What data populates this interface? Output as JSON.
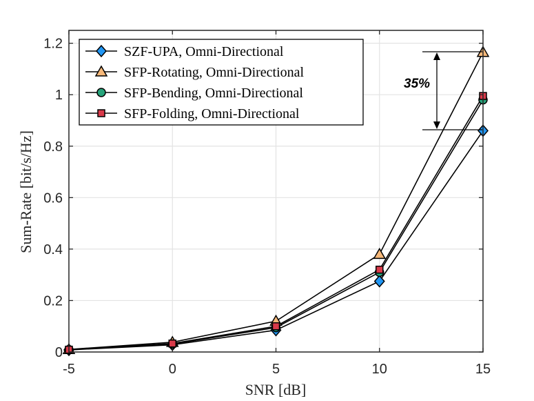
{
  "chart_data": {
    "type": "line",
    "title": "",
    "xlabel": "SNR [dB]",
    "ylabel": "Sum-Rate [bit/s/Hz]",
    "x": [
      -5,
      0,
      5,
      10,
      15
    ],
    "xlim": [
      -5,
      15
    ],
    "ylim": [
      0,
      1.25
    ],
    "xticks": [
      "-5",
      "0",
      "5",
      "10",
      "15"
    ],
    "yticks": [
      "0",
      "0.2",
      "0.4",
      "0.6",
      "0.8",
      "1",
      "1.2"
    ],
    "grid": true,
    "legend_position": "top-left",
    "series": [
      {
        "name": "SZF-UPA, Omni-Directional",
        "values": [
          0.008,
          0.028,
          0.085,
          0.275,
          0.86
        ],
        "marker": "diamond",
        "color": "#2196f3"
      },
      {
        "name": "SFP-Rotating, Omni-Directional",
        "values": [
          0.01,
          0.038,
          0.12,
          0.38,
          1.165
        ],
        "marker": "triangle",
        "color": "#f7b97a"
      },
      {
        "name": "SFP-Bending, Omni-Directional",
        "values": [
          0.009,
          0.031,
          0.095,
          0.31,
          0.98
        ],
        "marker": "circle",
        "color": "#26a37a"
      },
      {
        "name": "SFP-Folding, Omni-Directional",
        "values": [
          0.009,
          0.033,
          0.1,
          0.32,
          0.995
        ],
        "marker": "square",
        "color": "#d93a4a"
      }
    ],
    "annotation": {
      "text": "35%",
      "from": 0.86,
      "to": 1.165
    }
  }
}
